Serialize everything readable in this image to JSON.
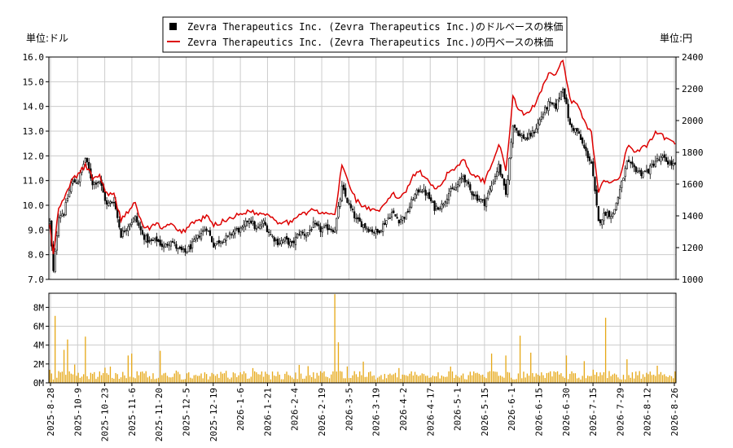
{
  "chart_data": {
    "type": "candlestick",
    "legend": {
      "placement": "top-center",
      "entries": [
        {
          "name": "Zevra Therapeutics Inc. (Zevra Therapeutics Inc.)のドルベースの株価",
          "color": "#000000",
          "marker": "square"
        },
        {
          "name": "Zevra Therapeutics Inc. (Zevra Therapeutics Inc.)の円ベースの株価",
          "color": "#dd0000",
          "marker": "line"
        }
      ]
    },
    "price_panel": {
      "left_unit_label": "単位:ドル",
      "right_unit_label": "単位:円",
      "left_axis": {
        "min": 7.0,
        "max": 16.0,
        "ticks": [
          "7.0",
          "8.0",
          "9.0",
          "10.0",
          "11.0",
          "12.0",
          "13.0",
          "14.0",
          "15.0",
          "16.0"
        ]
      },
      "right_axis": {
        "min": 1000,
        "max": 2400,
        "ticks": [
          "1000",
          "1200",
          "1400",
          "1600",
          "1800",
          "2000",
          "2200",
          "2400"
        ]
      },
      "grid": true
    },
    "volume_panel": {
      "axis": {
        "min": 0,
        "max": 9500000,
        "ticks": [
          {
            "v": 0,
            "label": "0M"
          },
          {
            "v": 2000000,
            "label": "2M"
          },
          {
            "v": 4000000,
            "label": "4M"
          },
          {
            "v": 6000000,
            "label": "6M"
          },
          {
            "v": 8000000,
            "label": "8M"
          }
        ]
      },
      "bar_color": "#e6a817",
      "grid": true
    },
    "x_tick_labels": [
      "2025-8-28",
      "2025-10-9",
      "2025-10-23",
      "2025-11-6",
      "2025-11-20",
      "2025-12-5",
      "2025-12-19",
      "2026-1-6",
      "2026-1-21",
      "2026-2-4",
      "2026-2-19",
      "2026-3-5",
      "2026-3-19",
      "2026-4-2",
      "2026-4-17",
      "2026-5-1",
      "2026-5-15",
      "2026-6-1",
      "2026-6-15",
      "2026-6-30",
      "2026-7-15",
      "2026-7-29",
      "2026-8-12",
      "2026-8-26"
    ],
    "usd_close_keypoints": [
      [
        0,
        9.3
      ],
      [
        2,
        7.3
      ],
      [
        5,
        9.6
      ],
      [
        8,
        9.7
      ],
      [
        12,
        10.9
      ],
      [
        16,
        11.0
      ],
      [
        20,
        11.9
      ],
      [
        24,
        10.9
      ],
      [
        28,
        11.0
      ],
      [
        32,
        10.0
      ],
      [
        36,
        10.2
      ],
      [
        40,
        8.8
      ],
      [
        44,
        9.2
      ],
      [
        48,
        9.5
      ],
      [
        52,
        8.8
      ],
      [
        56,
        8.5
      ],
      [
        60,
        8.6
      ],
      [
        64,
        8.3
      ],
      [
        68,
        8.6
      ],
      [
        72,
        8.2
      ],
      [
        76,
        8.1
      ],
      [
        80,
        8.4
      ],
      [
        84,
        8.8
      ],
      [
        88,
        9.1
      ],
      [
        92,
        8.4
      ],
      [
        96,
        8.6
      ],
      [
        100,
        8.7
      ],
      [
        104,
        9.0
      ],
      [
        108,
        9.0
      ],
      [
        112,
        9.5
      ],
      [
        116,
        9.0
      ],
      [
        120,
        9.3
      ],
      [
        124,
        8.8
      ],
      [
        128,
        8.5
      ],
      [
        132,
        8.6
      ],
      [
        136,
        8.4
      ],
      [
        140,
        8.9
      ],
      [
        144,
        8.8
      ],
      [
        148,
        9.2
      ],
      [
        152,
        9.0
      ],
      [
        156,
        9.1
      ],
      [
        160,
        9.0
      ],
      [
        164,
        10.7
      ],
      [
        168,
        10.0
      ],
      [
        172,
        9.4
      ],
      [
        176,
        9.2
      ],
      [
        180,
        9.0
      ],
      [
        184,
        8.9
      ],
      [
        188,
        9.3
      ],
      [
        192,
        9.7
      ],
      [
        196,
        9.4
      ],
      [
        200,
        9.6
      ],
      [
        204,
        10.3
      ],
      [
        208,
        10.7
      ],
      [
        212,
        10.4
      ],
      [
        216,
        9.9
      ],
      [
        220,
        10.0
      ],
      [
        224,
        10.5
      ],
      [
        228,
        10.7
      ],
      [
        232,
        11.2
      ],
      [
        236,
        10.6
      ],
      [
        240,
        10.3
      ],
      [
        244,
        10.1
      ],
      [
        248,
        10.8
      ],
      [
        252,
        11.6
      ],
      [
        256,
        10.4
      ],
      [
        260,
        13.3
      ],
      [
        264,
        12.8
      ],
      [
        268,
        12.7
      ],
      [
        272,
        13.0
      ],
      [
        276,
        13.6
      ],
      [
        280,
        14.1
      ],
      [
        284,
        14.0
      ],
      [
        288,
        14.8
      ],
      [
        292,
        13.2
      ],
      [
        296,
        13.0
      ],
      [
        300,
        12.3
      ],
      [
        304,
        11.7
      ],
      [
        308,
        9.3
      ],
      [
        312,
        9.7
      ],
      [
        316,
        9.6
      ],
      [
        320,
        10.6
      ],
      [
        324,
        11.7
      ],
      [
        328,
        11.5
      ],
      [
        332,
        11.3
      ],
      [
        336,
        11.4
      ],
      [
        340,
        11.8
      ],
      [
        344,
        11.9
      ],
      [
        348,
        11.7
      ],
      [
        351,
        11.6
      ]
    ],
    "jpy_close_keypoints": [
      [
        0,
        1350
      ],
      [
        2,
        1150
      ],
      [
        5,
        1450
      ],
      [
        8,
        1500
      ],
      [
        12,
        1620
      ],
      [
        16,
        1660
      ],
      [
        20,
        1720
      ],
      [
        24,
        1640
      ],
      [
        28,
        1650
      ],
      [
        32,
        1540
      ],
      [
        36,
        1530
      ],
      [
        40,
        1380
      ],
      [
        44,
        1430
      ],
      [
        48,
        1480
      ],
      [
        52,
        1340
      ],
      [
        56,
        1320
      ],
      [
        60,
        1350
      ],
      [
        64,
        1320
      ],
      [
        68,
        1350
      ],
      [
        72,
        1300
      ],
      [
        76,
        1310
      ],
      [
        80,
        1360
      ],
      [
        84,
        1370
      ],
      [
        88,
        1400
      ],
      [
        92,
        1340
      ],
      [
        96,
        1360
      ],
      [
        100,
        1380
      ],
      [
        104,
        1400
      ],
      [
        108,
        1410
      ],
      [
        112,
        1440
      ],
      [
        116,
        1410
      ],
      [
        120,
        1420
      ],
      [
        124,
        1400
      ],
      [
        128,
        1360
      ],
      [
        132,
        1370
      ],
      [
        136,
        1350
      ],
      [
        140,
        1420
      ],
      [
        144,
        1420
      ],
      [
        148,
        1440
      ],
      [
        152,
        1410
      ],
      [
        156,
        1420
      ],
      [
        160,
        1400
      ],
      [
        164,
        1720
      ],
      [
        168,
        1600
      ],
      [
        172,
        1500
      ],
      [
        176,
        1460
      ],
      [
        180,
        1440
      ],
      [
        184,
        1420
      ],
      [
        188,
        1470
      ],
      [
        192,
        1540
      ],
      [
        196,
        1510
      ],
      [
        200,
        1560
      ],
      [
        204,
        1660
      ],
      [
        208,
        1680
      ],
      [
        212,
        1620
      ],
      [
        216,
        1580
      ],
      [
        220,
        1600
      ],
      [
        224,
        1680
      ],
      [
        228,
        1700
      ],
      [
        232,
        1760
      ],
      [
        236,
        1680
      ],
      [
        240,
        1640
      ],
      [
        244,
        1620
      ],
      [
        248,
        1720
      ],
      [
        252,
        1860
      ],
      [
        256,
        1680
      ],
      [
        260,
        2150
      ],
      [
        264,
        2050
      ],
      [
        268,
        2040
      ],
      [
        272,
        2100
      ],
      [
        276,
        2200
      ],
      [
        280,
        2300
      ],
      [
        284,
        2280
      ],
      [
        288,
        2380
      ],
      [
        292,
        2130
      ],
      [
        296,
        2100
      ],
      [
        300,
        2000
      ],
      [
        304,
        1920
      ],
      [
        308,
        1560
      ],
      [
        312,
        1630
      ],
      [
        316,
        1610
      ],
      [
        320,
        1640
      ],
      [
        324,
        1840
      ],
      [
        328,
        1800
      ],
      [
        332,
        1820
      ],
      [
        336,
        1850
      ],
      [
        340,
        1920
      ],
      [
        344,
        1900
      ],
      [
        348,
        1870
      ],
      [
        351,
        1850
      ]
    ],
    "volume_spikes": [
      [
        3,
        7100000
      ],
      [
        8,
        3500000
      ],
      [
        10,
        4600000
      ],
      [
        20,
        4900000
      ],
      [
        44,
        2900000
      ],
      [
        46,
        3100000
      ],
      [
        62,
        3400000
      ],
      [
        140,
        1900000
      ],
      [
        160,
        9400000
      ],
      [
        162,
        4300000
      ],
      [
        248,
        3100000
      ],
      [
        256,
        2900000
      ],
      [
        264,
        5000000
      ],
      [
        270,
        3200000
      ],
      [
        290,
        2900000
      ],
      [
        300,
        2300000
      ],
      [
        312,
        6900000
      ],
      [
        324,
        2500000
      ]
    ]
  }
}
